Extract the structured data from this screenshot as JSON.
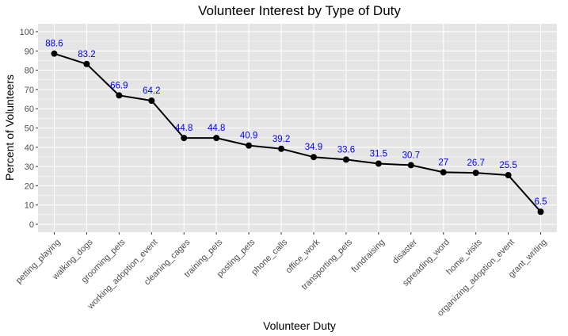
{
  "chart_data": {
    "type": "line",
    "title": "Volunteer Interest by Type of Duty",
    "xlabel": "Volunteer Duty",
    "ylabel": "Percent of Volunteers",
    "categories": [
      "petting_playing",
      "walking_dogs",
      "grooming_pets",
      "working_adoption_event",
      "cleaning_cages",
      "training_pets",
      "posting_pets",
      "phone_calls",
      "office_work",
      "transporting_pets",
      "fundraising",
      "disaster",
      "spreading_word",
      "home_visits",
      "organizing_adoption_event",
      "grant_writing"
    ],
    "values": [
      88.6,
      83.2,
      66.9,
      64.2,
      44.8,
      44.8,
      40.9,
      39.2,
      34.9,
      33.6,
      31.5,
      30.7,
      27,
      26.7,
      25.5,
      6.5
    ],
    "value_labels": [
      "88.6",
      "83.2",
      "66.9",
      "64.2",
      "44.8",
      "44.8",
      "40.9",
      "39.2",
      "34.9",
      "33.6",
      "31.5",
      "30.7",
      "27",
      "26.7",
      "25.5",
      "6.5"
    ],
    "ylim": [
      -4.1,
      104.1
    ],
    "yticks": [
      0,
      10,
      20,
      30,
      40,
      50,
      60,
      70,
      80,
      90,
      100
    ],
    "ytick_labels": [
      "0",
      "10",
      "20",
      "30",
      "40",
      "50",
      "60",
      "70",
      "80",
      "90",
      "100"
    ],
    "grid": true,
    "colors": {
      "panel": "#e5e5e5",
      "grid": "#ffffff",
      "line": "#000000",
      "point": "#000000",
      "data_label": "#0000ff",
      "tick_label": "#4d4d4d"
    }
  }
}
